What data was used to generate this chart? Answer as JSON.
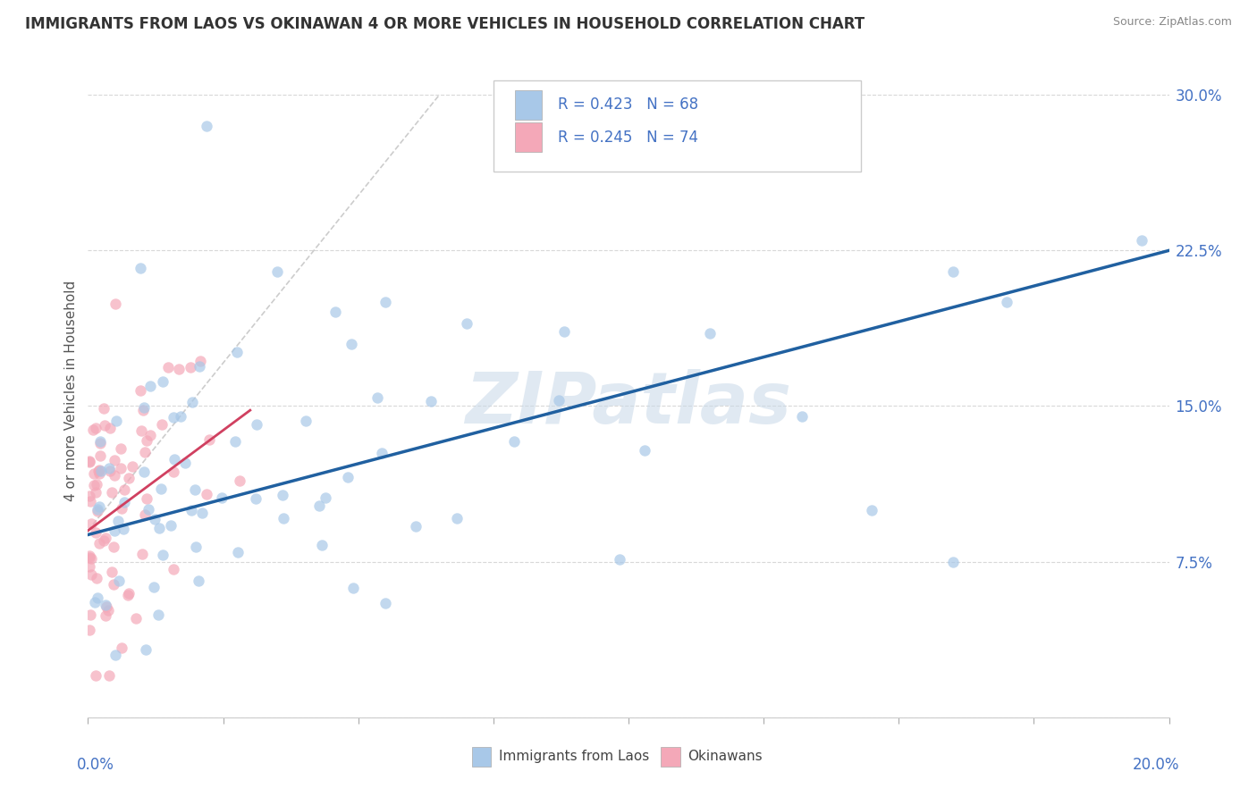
{
  "title": "IMMIGRANTS FROM LAOS VS OKINAWAN 4 OR MORE VEHICLES IN HOUSEHOLD CORRELATION CHART",
  "source": "Source: ZipAtlas.com",
  "ylabel": "4 or more Vehicles in Household",
  "ytick_labels": [
    "",
    "7.5%",
    "15.0%",
    "22.5%",
    "30.0%"
  ],
  "xlim": [
    0.0,
    0.2
  ],
  "ylim": [
    0.0,
    0.315
  ],
  "legend_label1": "Immigrants from Laos",
  "legend_label2": "Okinawans",
  "R1": 0.423,
  "N1": 68,
  "R2": 0.245,
  "N2": 74,
  "color1": "#a8c8e8",
  "color2": "#f4a8b8",
  "trendline1_color": "#2060a0",
  "trendline2_color": "#d04060",
  "refline_color": "#c0c0c0",
  "watermark": "ZIPatlas",
  "watermark_color": "#c8d8e8",
  "background_color": "#ffffff",
  "grid_color": "#d8d8d8",
  "title_color": "#333333",
  "source_color": "#888888",
  "axis_label_color": "#4472c4",
  "ylabel_color": "#555555"
}
